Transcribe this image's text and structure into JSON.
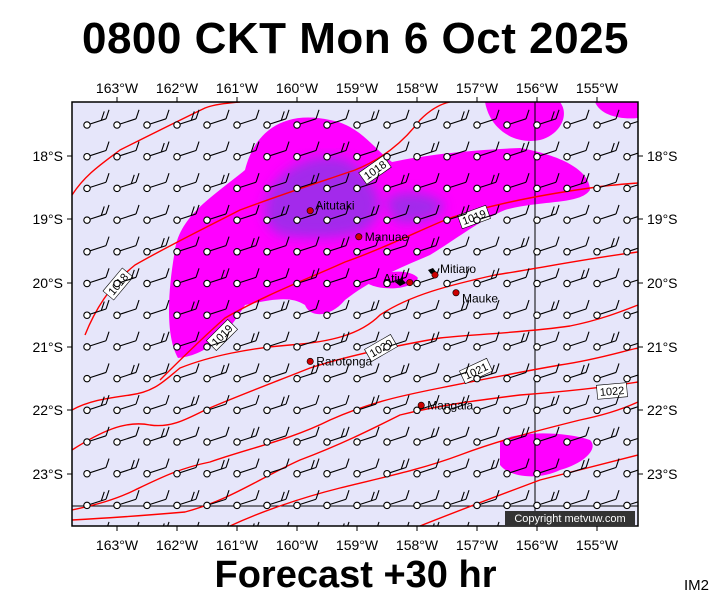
{
  "header": {
    "title": "0800 CKT Mon 6 Oct 2025"
  },
  "footer": {
    "forecast_label": "Forecast +30 hr",
    "image_code": "IM2"
  },
  "map": {
    "lon_labels": [
      "163°W",
      "162°W",
      "161°W",
      "160°W",
      "159°W",
      "158°W",
      "157°W",
      "156°W",
      "155°W"
    ],
    "lat_labels": [
      "18°S",
      "19°S",
      "20°S",
      "21°S",
      "22°S",
      "23°S"
    ],
    "places": [
      {
        "name": "Aitutaki",
        "lon": -159.78,
        "lat": -18.86
      },
      {
        "name": "Manuae",
        "lon": -158.97,
        "lat": -19.27
      },
      {
        "name": "Atiu",
        "lon": -158.12,
        "lat": -19.99
      },
      {
        "name": "Mitiaro",
        "lon": -157.7,
        "lat": -19.87
      },
      {
        "name": "Mauke",
        "lon": -157.35,
        "lat": -20.15
      },
      {
        "name": "Rarotonga",
        "lon": -159.78,
        "lat": -21.23
      },
      {
        "name": "Mangaia",
        "lon": -157.93,
        "lat": -21.92
      }
    ],
    "isobar_labels": [
      "1018",
      "1019",
      "1018",
      "1019",
      "1020",
      "1021",
      "1022"
    ],
    "copyright": "Copyright metvuw.com",
    "colors": {
      "background": "#e6e6fa",
      "isobar": "#ff0000",
      "rain_light": "#ff00ff",
      "rain_heavy": "#8a2be2",
      "town": "#cc0000"
    }
  }
}
